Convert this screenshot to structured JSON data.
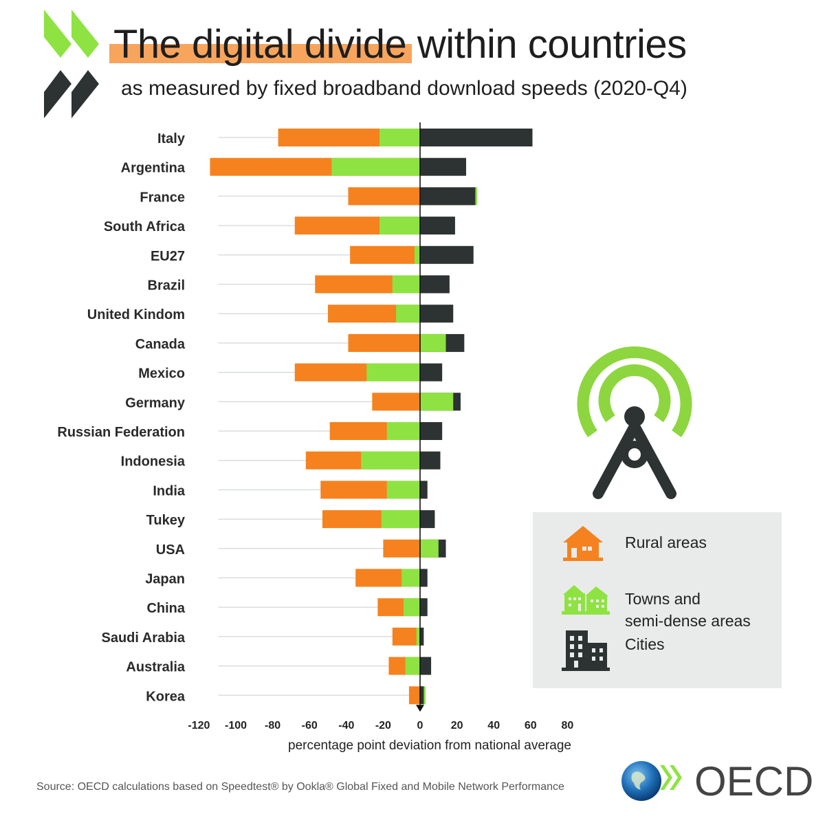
{
  "header": {
    "title_highlight": "The digital divide",
    "title_rest": " within countries",
    "subtitle": "as measured by fixed broadband download speeds (2020-Q4)"
  },
  "colors": {
    "rural": "#f5821f",
    "towns": "#8ee342",
    "cities": "#2d3233",
    "gridline": "#d9dddc",
    "highlight": "#f7a45d",
    "signal": "#8dd63f"
  },
  "chart_data": {
    "type": "bar",
    "orientation": "horizontal",
    "xlabel": "percentage point deviation from national average",
    "xlim": [
      -120,
      80
    ],
    "xticks": [
      -120,
      -100,
      -80,
      -60,
      -40,
      -20,
      0,
      20,
      40,
      60,
      80
    ],
    "categories": [
      "Italy",
      "Argentina",
      "France",
      "South Africa",
      "EU27",
      "Brazil",
      "United Kindom",
      "Canada",
      "Mexico",
      "Germany",
      "Russian Federation",
      "Indonesia",
      "India",
      "Tukey",
      "USA",
      "Japan",
      "China",
      "Saudi Arabia",
      "Australia",
      "Korea"
    ],
    "series": [
      {
        "name": "Rural areas",
        "key": "rural",
        "values": [
          -77,
          -114,
          -39,
          -68,
          -38,
          -57,
          -50,
          -39,
          -68,
          -26,
          -49,
          -62,
          -54,
          -53,
          -20,
          -35,
          -23,
          -15,
          -17,
          -6
        ]
      },
      {
        "name": "Towns and semi-dense areas",
        "key": "towns",
        "values": [
          -22,
          -48,
          31,
          -22,
          -3,
          -15,
          -13,
          14,
          -29,
          18,
          -18,
          -32,
          -18,
          -21,
          10,
          -10,
          -9,
          -2,
          -8,
          3
        ]
      },
      {
        "name": "Cities",
        "key": "cities",
        "values": [
          61,
          25,
          30,
          19,
          29,
          16,
          18,
          24,
          12,
          22,
          12,
          11,
          4,
          8,
          14,
          4,
          4,
          2,
          6,
          2
        ]
      }
    ]
  },
  "legend": {
    "rural": "Rural areas",
    "towns_line1": "Towns and",
    "towns_line2": "semi-dense areas",
    "cities": "Cities"
  },
  "footer": {
    "source": "Source: OECD calculations based on Speedtest® by Ookla® Global Fixed and Mobile Network Performance",
    "brand": "OECD"
  }
}
